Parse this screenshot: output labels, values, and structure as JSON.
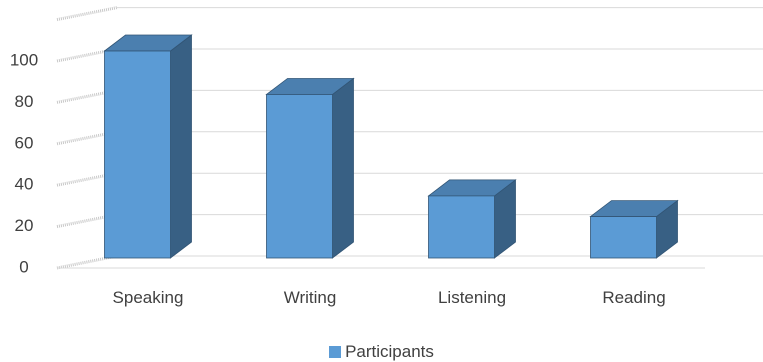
{
  "chart_data": {
    "type": "bar",
    "style": "3d-clustered-column",
    "categories": [
      "Speaking",
      "Writing",
      "Listening",
      "Reading"
    ],
    "series": [
      {
        "name": "Participants",
        "values": [
          100,
          79,
          30,
          20
        ],
        "color": "#5b9bd5"
      }
    ],
    "ylim": [
      0,
      120
    ],
    "yticks": [
      0,
      20,
      40,
      60,
      80,
      100
    ],
    "grid": true,
    "legend": "bottom-center"
  }
}
